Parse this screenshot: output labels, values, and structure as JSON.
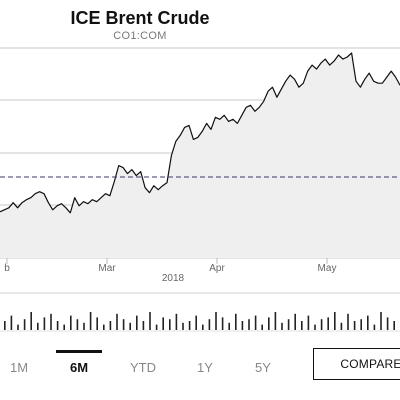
{
  "header": {
    "title": "ICE Brent Crude",
    "ticker": "CO1:COM"
  },
  "chart_data": {
    "type": "area",
    "title": "ICE Brent Crude",
    "subtitle": "CO1:COM",
    "x_tick_labels": [
      "b",
      "Mar",
      "Apr",
      "May"
    ],
    "year_label": "2018",
    "reference_line": "dashed",
    "grid": true,
    "price_index": [
      0.46,
      0.48,
      0.5,
      0.55,
      0.5,
      0.55,
      0.58,
      0.6,
      0.64,
      0.66,
      0.64,
      0.55,
      0.48,
      0.52,
      0.54,
      0.5,
      0.45,
      0.6,
      0.52,
      0.56,
      0.54,
      0.58,
      0.56,
      0.6,
      0.64,
      0.62,
      0.76,
      0.92,
      0.9,
      0.84,
      0.88,
      0.82,
      0.86,
      0.7,
      0.65,
      0.72,
      0.68,
      0.72,
      0.75,
      1.02,
      1.16,
      1.22,
      1.3,
      1.32,
      1.18,
      1.2,
      1.26,
      1.34,
      1.28,
      1.4,
      1.38,
      1.42,
      1.36,
      1.38,
      1.34,
      1.42,
      1.5,
      1.52,
      1.46,
      1.5,
      1.56,
      1.66,
      1.7,
      1.6,
      1.68,
      1.76,
      1.82,
      1.78,
      1.7,
      1.74,
      1.86,
      1.92,
      1.88,
      1.94,
      1.98,
      1.92,
      1.96,
      2.02,
      1.98,
      2.0,
      2.04,
      1.76,
      1.7,
      1.78,
      1.84,
      1.76,
      1.74,
      1.74,
      1.8,
      1.86,
      1.8,
      1.72
    ],
    "volume_index": [
      0.5,
      0.8,
      0.3,
      0.6,
      1.0,
      0.4,
      0.7,
      0.9,
      0.5,
      0.3,
      0.8,
      0.6,
      0.4,
      1.0,
      0.7,
      0.3,
      0.5,
      0.9,
      0.6,
      0.4,
      0.8,
      0.5,
      1.0,
      0.3,
      0.7,
      0.6,
      0.9,
      0.4,
      0.5,
      0.8,
      0.3,
      0.6,
      1.0,
      0.7,
      0.4,
      0.9,
      0.5,
      0.6,
      0.8,
      0.3,
      0.7,
      1.0,
      0.4,
      0.6,
      0.9,
      0.5,
      0.8,
      0.3,
      0.6,
      0.7,
      1.0,
      0.4,
      0.9,
      0.5,
      0.6,
      0.8,
      0.3,
      1.0,
      0.7,
      0.5,
      0.6
    ]
  },
  "range_tabs": [
    {
      "label": "1M",
      "active": false
    },
    {
      "label": "6M",
      "active": true
    },
    {
      "label": "YTD",
      "active": false
    },
    {
      "label": "1Y",
      "active": false
    },
    {
      "label": "5Y",
      "active": false
    }
  ],
  "compare_label": "COMPARE"
}
